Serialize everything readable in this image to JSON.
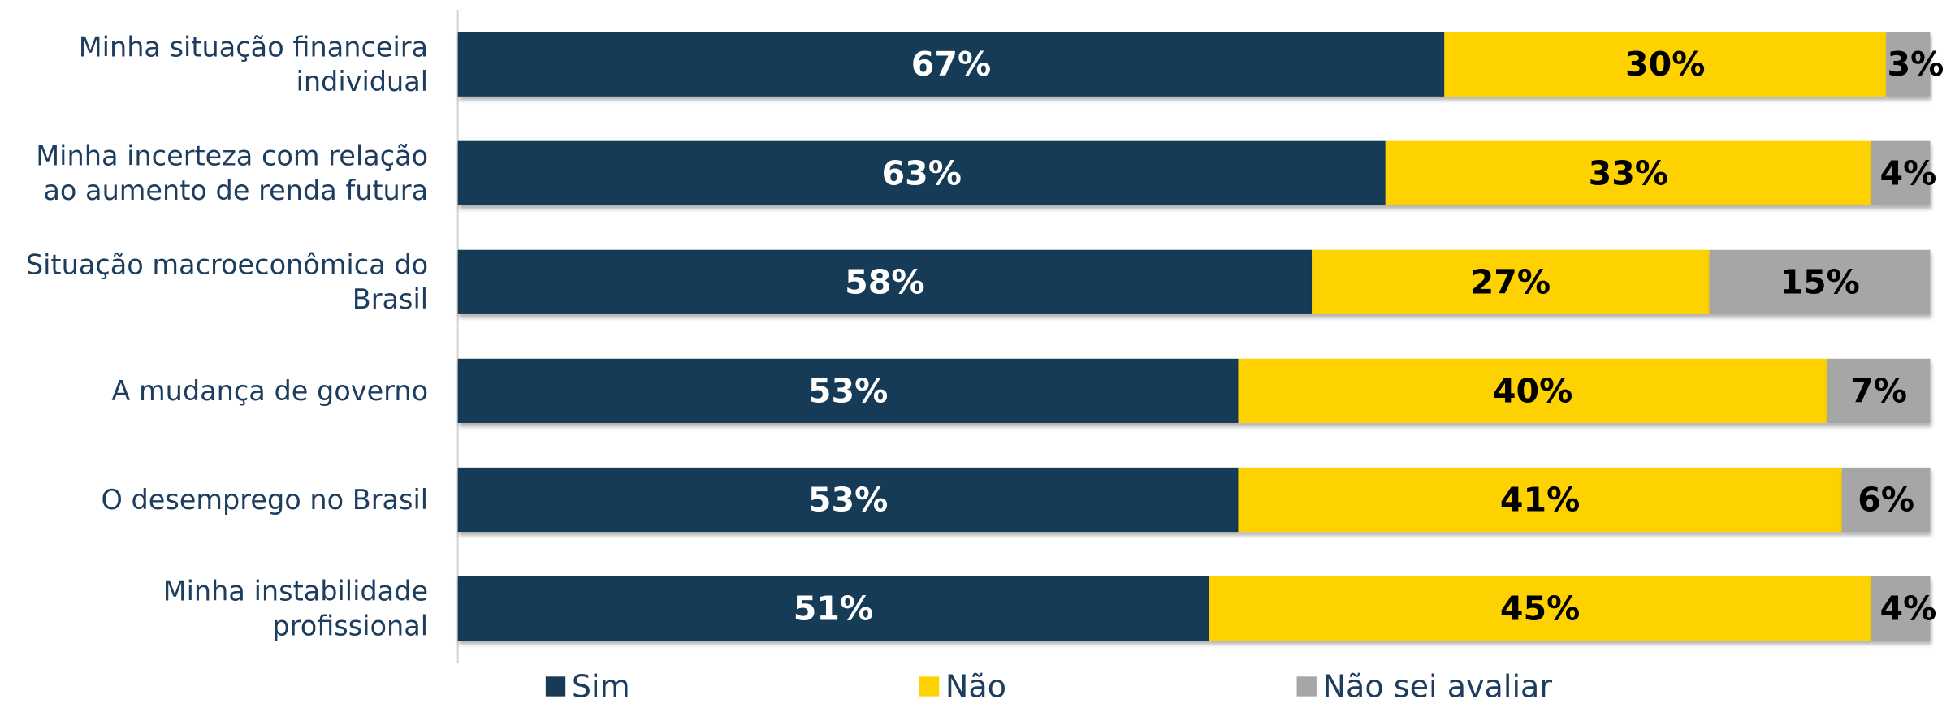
{
  "chart_data": {
    "type": "stacked_bar_horizontal",
    "categories": [
      "Minha situação financeira individual",
      "Minha incerteza com relação ao aumento de renda futura",
      "Situação macroeconômica do Brasil",
      "A mudança de governo",
      "O desemprego no Brasil",
      "Minha instabilidade profissional"
    ],
    "xlim": [
      0,
      100
    ],
    "legend": "bottom",
    "series": [
      {
        "name": "Sim",
        "color": "#183a57",
        "values": [
          67,
          63,
          58,
          53,
          53,
          51
        ],
        "value_labels": [
          "67%",
          "63%",
          "58%",
          "53%",
          "53%",
          "51%"
        ]
      },
      {
        "name": "Não",
        "color": "#fdd200",
        "values": [
          30,
          33,
          27,
          40,
          41,
          45
        ],
        "value_labels": [
          "30%",
          "33%",
          "27%",
          "40%",
          "41%",
          "45%"
        ]
      },
      {
        "name": "Não sei avaliar",
        "color": "#a6a6a6",
        "values": [
          3,
          4,
          15,
          7,
          6,
          4
        ],
        "value_labels": [
          "3%",
          "4%",
          "15%",
          "7%",
          "6%",
          "4%"
        ]
      }
    ]
  }
}
